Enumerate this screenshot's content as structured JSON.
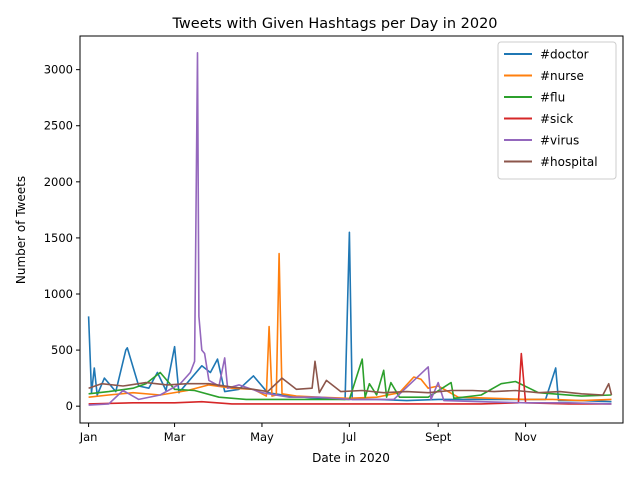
{
  "chart_data": {
    "type": "line",
    "title": "Tweets with Given Hashtags per Day in 2020",
    "xlabel": "Date in 2020",
    "ylabel": "Number of Tweets",
    "x_range": [
      "2019-12-26",
      "2021-01-08"
    ],
    "ylim": [
      -150,
      3300
    ],
    "x_ticks": [
      {
        "date": "2020-01-01",
        "label": "Jan"
      },
      {
        "date": "2020-03-01",
        "label": "Mar"
      },
      {
        "date": "2020-05-01",
        "label": "May"
      },
      {
        "date": "2020-07-01",
        "label": "Jul"
      },
      {
        "date": "2020-09-01",
        "label": "Sept"
      },
      {
        "date": "2020-11-01",
        "label": "Nov"
      }
    ],
    "y_ticks": [
      0,
      500,
      1000,
      1500,
      2000,
      2500,
      3000
    ],
    "grid": false,
    "legend_position": "top-right",
    "series": [
      {
        "name": "#doctor",
        "color": "#1f77b4",
        "points": [
          [
            "2020-01-01",
            800
          ],
          [
            "2020-01-03",
            120
          ],
          [
            "2020-01-05",
            340
          ],
          [
            "2020-01-07",
            100
          ],
          [
            "2020-01-12",
            250
          ],
          [
            "2020-01-20",
            130
          ],
          [
            "2020-01-27",
            500
          ],
          [
            "2020-01-28",
            520
          ],
          [
            "2020-02-05",
            180
          ],
          [
            "2020-02-12",
            160
          ],
          [
            "2020-02-18",
            300
          ],
          [
            "2020-02-24",
            140
          ],
          [
            "2020-03-01",
            530
          ],
          [
            "2020-03-04",
            120
          ],
          [
            "2020-03-20",
            360
          ],
          [
            "2020-03-26",
            300
          ],
          [
            "2020-03-31",
            420
          ],
          [
            "2020-04-05",
            130
          ],
          [
            "2020-04-15",
            150
          ],
          [
            "2020-04-25",
            270
          ],
          [
            "2020-05-05",
            120
          ],
          [
            "2020-05-20",
            90
          ],
          [
            "2020-06-10",
            70
          ],
          [
            "2020-06-28",
            60
          ],
          [
            "2020-07-01",
            1550
          ],
          [
            "2020-07-03",
            60
          ],
          [
            "2020-07-20",
            60
          ],
          [
            "2020-08-10",
            50
          ],
          [
            "2020-09-01",
            60
          ],
          [
            "2020-09-20",
            60
          ],
          [
            "2020-10-10",
            60
          ],
          [
            "2020-10-28",
            60
          ],
          [
            "2020-11-15",
            60
          ],
          [
            "2020-11-22",
            340
          ],
          [
            "2020-11-24",
            50
          ],
          [
            "2020-12-10",
            50
          ],
          [
            "2020-12-31",
            40
          ]
        ]
      },
      {
        "name": "#nurse",
        "color": "#ff7f0e",
        "points": [
          [
            "2020-01-01",
            80
          ],
          [
            "2020-01-15",
            100
          ],
          [
            "2020-02-01",
            120
          ],
          [
            "2020-02-20",
            100
          ],
          [
            "2020-03-10",
            140
          ],
          [
            "2020-03-25",
            190
          ],
          [
            "2020-04-10",
            160
          ],
          [
            "2020-04-25",
            150
          ],
          [
            "2020-05-04",
            90
          ],
          [
            "2020-05-06",
            710
          ],
          [
            "2020-05-08",
            90
          ],
          [
            "2020-05-11",
            100
          ],
          [
            "2020-05-13",
            1360
          ],
          [
            "2020-05-15",
            110
          ],
          [
            "2020-05-25",
            90
          ],
          [
            "2020-06-10",
            80
          ],
          [
            "2020-06-30",
            70
          ],
          [
            "2020-07-20",
            80
          ],
          [
            "2020-08-05",
            120
          ],
          [
            "2020-08-15",
            260
          ],
          [
            "2020-08-20",
            240
          ],
          [
            "2020-08-25",
            160
          ],
          [
            "2020-09-01",
            180
          ],
          [
            "2020-09-15",
            80
          ],
          [
            "2020-10-10",
            70
          ],
          [
            "2020-11-01",
            60
          ],
          [
            "2020-11-20",
            60
          ],
          [
            "2020-12-10",
            50
          ],
          [
            "2020-12-31",
            60
          ]
        ]
      },
      {
        "name": "#flu",
        "color": "#2ca02c",
        "points": [
          [
            "2020-01-01",
            110
          ],
          [
            "2020-01-15",
            130
          ],
          [
            "2020-02-01",
            160
          ],
          [
            "2020-02-10",
            200
          ],
          [
            "2020-02-20",
            300
          ],
          [
            "2020-03-01",
            150
          ],
          [
            "2020-03-15",
            140
          ],
          [
            "2020-04-01",
            80
          ],
          [
            "2020-04-20",
            60
          ],
          [
            "2020-05-10",
            60
          ],
          [
            "2020-05-30",
            60
          ],
          [
            "2020-06-20",
            60
          ],
          [
            "2020-07-01",
            60
          ],
          [
            "2020-07-10",
            420
          ],
          [
            "2020-07-12",
            80
          ],
          [
            "2020-07-15",
            200
          ],
          [
            "2020-07-20",
            100
          ],
          [
            "2020-07-25",
            320
          ],
          [
            "2020-07-27",
            80
          ],
          [
            "2020-07-30",
            210
          ],
          [
            "2020-08-05",
            80
          ],
          [
            "2020-08-25",
            80
          ],
          [
            "2020-09-10",
            210
          ],
          [
            "2020-09-12",
            70
          ],
          [
            "2020-10-01",
            100
          ],
          [
            "2020-10-15",
            200
          ],
          [
            "2020-10-25",
            220
          ],
          [
            "2020-11-10",
            120
          ],
          [
            "2020-12-10",
            90
          ],
          [
            "2020-12-31",
            100
          ]
        ]
      },
      {
        "name": "#sick",
        "color": "#d62728",
        "points": [
          [
            "2020-01-01",
            20
          ],
          [
            "2020-02-01",
            30
          ],
          [
            "2020-03-01",
            30
          ],
          [
            "2020-03-20",
            40
          ],
          [
            "2020-04-10",
            20
          ],
          [
            "2020-05-01",
            20
          ],
          [
            "2020-06-01",
            20
          ],
          [
            "2020-07-01",
            20
          ],
          [
            "2020-08-01",
            20
          ],
          [
            "2020-09-01",
            20
          ],
          [
            "2020-10-01",
            20
          ],
          [
            "2020-10-27",
            30
          ],
          [
            "2020-10-29",
            470
          ],
          [
            "2020-11-01",
            30
          ],
          [
            "2020-12-01",
            20
          ],
          [
            "2020-12-31",
            20
          ]
        ]
      },
      {
        "name": "#virus",
        "color": "#9467bd",
        "points": [
          [
            "2020-01-01",
            10
          ],
          [
            "2020-01-15",
            20
          ],
          [
            "2020-01-25",
            140
          ],
          [
            "2020-02-05",
            60
          ],
          [
            "2020-02-20",
            100
          ],
          [
            "2020-03-05",
            200
          ],
          [
            "2020-03-12",
            300
          ],
          [
            "2020-03-15",
            400
          ],
          [
            "2020-03-17",
            3150
          ],
          [
            "2020-03-18",
            800
          ],
          [
            "2020-03-20",
            500
          ],
          [
            "2020-03-22",
            470
          ],
          [
            "2020-03-25",
            230
          ],
          [
            "2020-04-01",
            180
          ],
          [
            "2020-04-05",
            430
          ],
          [
            "2020-04-07",
            160
          ],
          [
            "2020-04-15",
            190
          ],
          [
            "2020-05-01",
            120
          ],
          [
            "2020-05-20",
            80
          ],
          [
            "2020-06-10",
            80
          ],
          [
            "2020-07-01",
            60
          ],
          [
            "2020-08-01",
            60
          ],
          [
            "2020-08-25",
            350
          ],
          [
            "2020-08-27",
            60
          ],
          [
            "2020-09-01",
            210
          ],
          [
            "2020-09-05",
            50
          ],
          [
            "2020-10-01",
            40
          ],
          [
            "2020-11-01",
            30
          ],
          [
            "2020-12-01",
            30
          ],
          [
            "2020-12-31",
            20
          ]
        ]
      },
      {
        "name": "#hospital",
        "color": "#8c564b",
        "points": [
          [
            "2020-01-01",
            160
          ],
          [
            "2020-01-10",
            200
          ],
          [
            "2020-01-25",
            180
          ],
          [
            "2020-02-10",
            210
          ],
          [
            "2020-02-25",
            190
          ],
          [
            "2020-03-10",
            200
          ],
          [
            "2020-03-25",
            200
          ],
          [
            "2020-04-10",
            170
          ],
          [
            "2020-04-25",
            150
          ],
          [
            "2020-05-05",
            130
          ],
          [
            "2020-05-15",
            250
          ],
          [
            "2020-05-25",
            150
          ],
          [
            "2020-06-05",
            160
          ],
          [
            "2020-06-07",
            400
          ],
          [
            "2020-06-10",
            120
          ],
          [
            "2020-06-15",
            230
          ],
          [
            "2020-06-25",
            130
          ],
          [
            "2020-07-10",
            140
          ],
          [
            "2020-07-25",
            120
          ],
          [
            "2020-08-10",
            130
          ],
          [
            "2020-08-25",
            120
          ],
          [
            "2020-09-10",
            140
          ],
          [
            "2020-09-25",
            140
          ],
          [
            "2020-10-10",
            130
          ],
          [
            "2020-10-25",
            140
          ],
          [
            "2020-11-10",
            120
          ],
          [
            "2020-11-25",
            130
          ],
          [
            "2020-12-10",
            110
          ],
          [
            "2020-12-25",
            100
          ],
          [
            "2020-12-29",
            200
          ],
          [
            "2020-12-31",
            100
          ]
        ]
      }
    ]
  }
}
